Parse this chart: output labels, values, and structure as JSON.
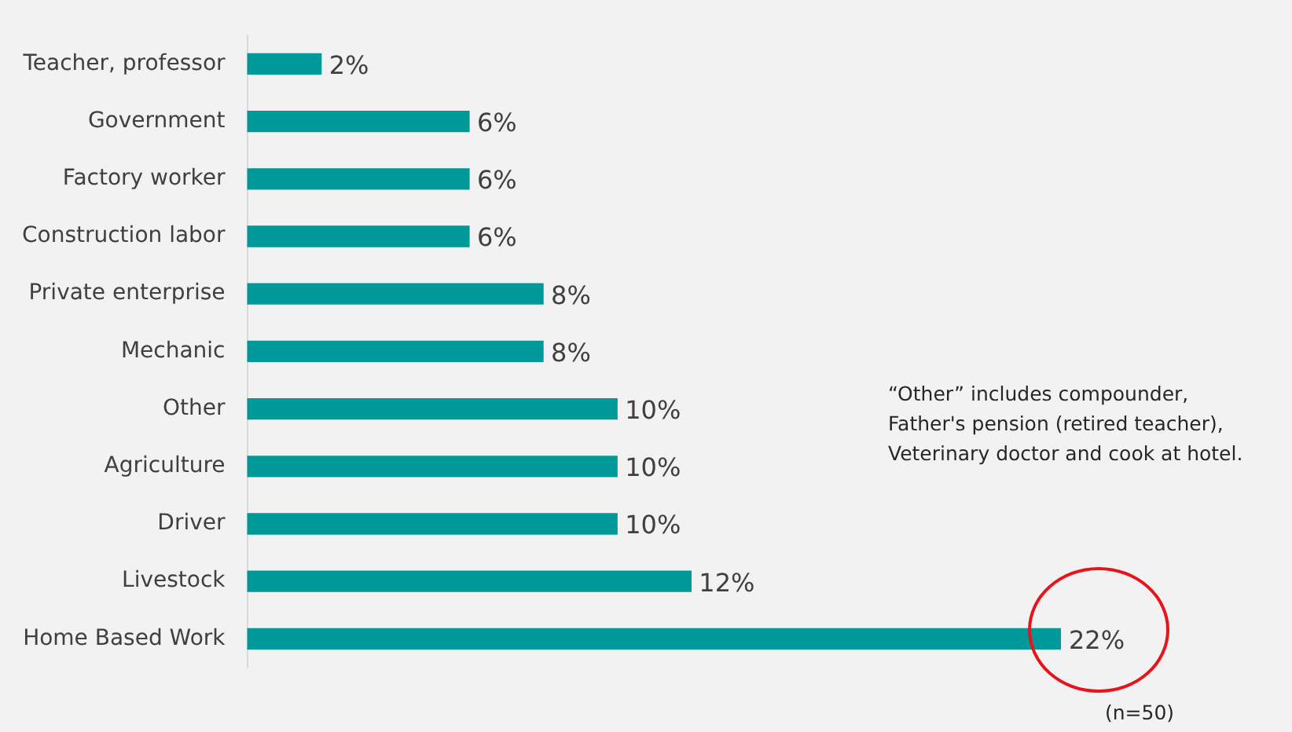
{
  "chart_data": {
    "type": "bar",
    "orientation": "horizontal",
    "categories": [
      "Teacher, professor",
      "Government",
      "Factory worker",
      "Construction labor",
      "Private enterprise",
      "Mechanic",
      "Other",
      "Agriculture",
      "Driver",
      "Livestock",
      "Home Based Work"
    ],
    "values": [
      2,
      6,
      6,
      6,
      8,
      8,
      10,
      10,
      10,
      12,
      22
    ],
    "value_labels": [
      "2%",
      "6%",
      "6%",
      "6%",
      "8%",
      "8%",
      "10%",
      "10%",
      "10%",
      "12%",
      "22%"
    ],
    "color": "#009999",
    "legend": false,
    "annotations": [
      "“Other” includes compounder, Father's pension (retired teacher), Veterinary doctor and cook at hotel.",
      "(n=50)"
    ]
  }
}
